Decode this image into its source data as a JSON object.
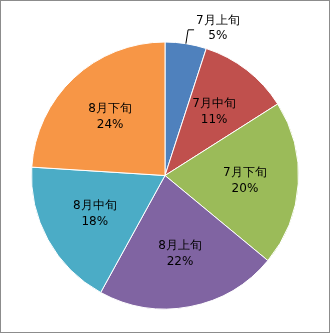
{
  "chart_data": {
    "type": "pie",
    "categories": [
      "7月上旬",
      "7月中旬",
      "7月下旬",
      "8月上旬",
      "8月中旬",
      "8月下旬"
    ],
    "values": [
      5,
      11,
      20,
      22,
      18,
      24
    ],
    "value_labels": [
      "5%",
      "11%",
      "20%",
      "22%",
      "18%",
      "24%"
    ],
    "colors": [
      "#4f81bd",
      "#c0504d",
      "#9bbb59",
      "#8064a2",
      "#4bacc6",
      "#f79646"
    ],
    "data_labels": true
  }
}
